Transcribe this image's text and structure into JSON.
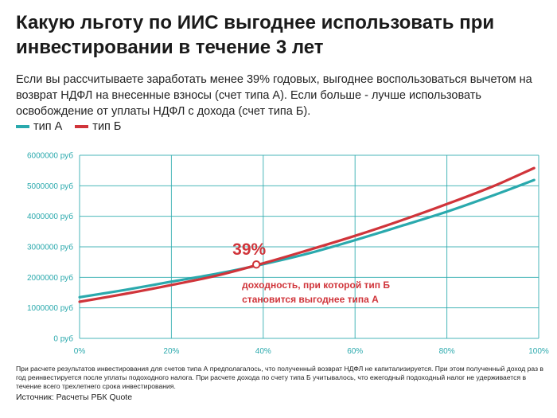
{
  "title": "Какую льготу по ИИС выгоднее использовать при инвестировании в течение 3 лет",
  "subtitle": "Если вы рассчитываете заработать менее 39% годовых, выгоднее воспользоваться вычетом на возврат НДФЛ на внесенные взносы (счет типа А). Если больше - лучше использовать освобождение от уплаты НДФЛ с дохода (счет типа Б).",
  "colors": {
    "type_a": "#2aa9ad",
    "type_b": "#d0343a",
    "grid": "#2aa9ad",
    "tick": "#2aa9ad"
  },
  "chart_data": {
    "type": "line",
    "xlim": [
      0,
      100
    ],
    "ylim": [
      0,
      6000000
    ],
    "grid": true,
    "legend_position": "top-left",
    "x_ticks": [
      "0%",
      "20%",
      "40%",
      "60%",
      "80%",
      "100%"
    ],
    "y_ticks": [
      "0 руб",
      "1000000 руб",
      "2000000 руб",
      "3000000 руб",
      "4000000 руб",
      "5000000 руб",
      "6000000 руб"
    ],
    "x": [
      0,
      10,
      20,
      30,
      40,
      50,
      60,
      70,
      80,
      90,
      99
    ],
    "series": [
      {
        "name": "тип А",
        "color": "#2aa9ad",
        "values": [
          1350000,
          1590000,
          1860000,
          2120000,
          2430000,
          2790000,
          3220000,
          3680000,
          4150000,
          4680000,
          5190000
        ]
      },
      {
        "name": "тип Б",
        "color": "#d0343a",
        "values": [
          1200000,
          1460000,
          1750000,
          2060000,
          2460000,
          2900000,
          3360000,
          3860000,
          4400000,
          4980000,
          5580000
        ]
      }
    ],
    "annotation": {
      "x": 38.5,
      "y": 2420000,
      "value_label": "39%",
      "text_lines": [
        "доходность, при которой тип Б",
        "становится выгоднее типа А"
      ]
    }
  },
  "notes": [
    "При расчете результатов инвестирования  для счетов типа А предполагалось, что полученный возврат НДФЛ не капитализируется. При этом полученный доход раз в год реинвестируется после уплаты подоходного налога. При расчете дохода по счету типа Б учитывалось, что ежегодный подоходный налог не удерживается в течение всего трехлетнего срока инвестирования."
  ],
  "source": "Источник: Расчеты РБК Quote"
}
